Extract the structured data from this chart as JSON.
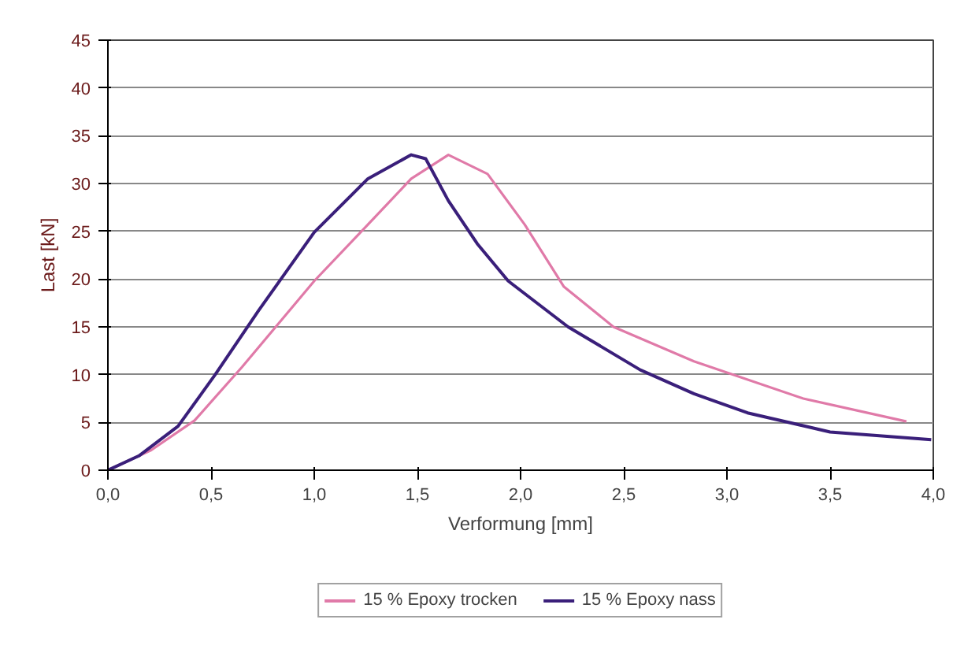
{
  "chart_data": {
    "type": "line",
    "xlabel": "Verformung [mm]",
    "ylabel": "Last [kN]",
    "xlim": [
      0,
      4
    ],
    "ylim": [
      0,
      45
    ],
    "xticks": [
      {
        "value": 0,
        "label": "0,0"
      },
      {
        "value": 0.5,
        "label": "0,5"
      },
      {
        "value": 1,
        "label": "1,0"
      },
      {
        "value": 1.5,
        "label": "1,5"
      },
      {
        "value": 2,
        "label": "2,0"
      },
      {
        "value": 2.5,
        "label": "2,5"
      },
      {
        "value": 3,
        "label": "3,0"
      },
      {
        "value": 3.5,
        "label": "3,5"
      },
      {
        "value": 4,
        "label": "4,0"
      }
    ],
    "yticks": [
      0,
      5,
      10,
      15,
      20,
      25,
      30,
      35,
      40,
      45
    ],
    "grid": "y",
    "legend": "bottom",
    "line_style": "solid",
    "marker": "none",
    "series": [
      {
        "name": "15 % Epoxy trocken",
        "color": "#e07aa8",
        "x": [
          0,
          0.21,
          0.42,
          0.65,
          1.0,
          1.26,
          1.47,
          1.65,
          1.84,
          2.02,
          2.21,
          2.45,
          2.84,
          3.37,
          3.87
        ],
        "values": [
          0,
          2.1,
          5.2,
          10.8,
          19.8,
          25.7,
          30.5,
          33,
          31,
          25.7,
          19.2,
          15,
          11.4,
          7.5,
          5.1
        ]
      },
      {
        "name": "15 % Epoxy nass",
        "color": "#3a1f7a",
        "x": [
          0,
          0.15,
          0.34,
          0.52,
          0.73,
          1.0,
          1.26,
          1.47,
          1.54,
          1.65,
          1.79,
          1.94,
          2.23,
          2.58,
          2.84,
          3.1,
          3.5,
          3.99
        ],
        "values": [
          0,
          1.5,
          4.6,
          10,
          16.7,
          24.9,
          30.5,
          33,
          32.6,
          28.2,
          23.7,
          19.8,
          15,
          10.5,
          8,
          6,
          4,
          3.2
        ]
      }
    ]
  }
}
